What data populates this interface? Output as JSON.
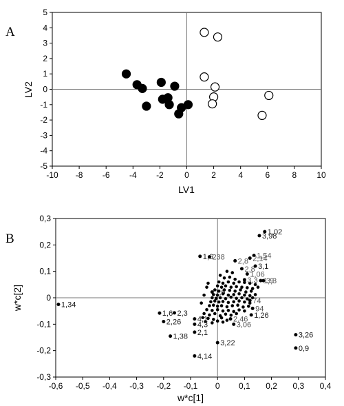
{
  "panels": {
    "A": {
      "letter": "A",
      "xlabel": "LV1",
      "ylabel": "LV2",
      "xticks": [
        "-10",
        "-8",
        "-6",
        "-4",
        "-2",
        "0",
        "2",
        "4",
        "6",
        "8",
        "10"
      ],
      "yticks": [
        "5",
        "4",
        "3",
        "2",
        "1",
        "0",
        "-1",
        "-2",
        "-3",
        "-4",
        "-5"
      ]
    },
    "B": {
      "letter": "B",
      "xlabel": "w*c[1]",
      "ylabel": "w*c[2]",
      "xticks": [
        "-0,6",
        "-0,5",
        "-0,4",
        "-0,3",
        "-0,2",
        "-0,1",
        "0",
        "0,1",
        "0,2",
        "0,3",
        "0,4"
      ],
      "yticks": [
        "0,3",
        "0,2",
        "0,1",
        "0",
        "-0,1",
        "-0,2",
        "-0,3"
      ]
    }
  },
  "chart_data": [
    {
      "type": "scatter",
      "title": "",
      "xlabel": "LV1",
      "ylabel": "LV2",
      "xlim": [
        -10,
        10
      ],
      "ylim": [
        -5,
        5
      ],
      "grid": false,
      "reference_lines": {
        "x": 0,
        "y": 0
      },
      "series": [
        {
          "marker": "filled-circle",
          "color": "#000000",
          "points": [
            {
              "x": -4.5,
              "y": 1.0
            },
            {
              "x": -3.7,
              "y": 0.3
            },
            {
              "x": -3.3,
              "y": 0.05
            },
            {
              "x": -3.0,
              "y": -1.1
            },
            {
              "x": -1.9,
              "y": 0.45
            },
            {
              "x": -1.8,
              "y": -0.65
            },
            {
              "x": -1.4,
              "y": -0.55
            },
            {
              "x": -1.3,
              "y": -1.0
            },
            {
              "x": -0.9,
              "y": 0.2
            },
            {
              "x": -0.6,
              "y": -1.6
            },
            {
              "x": -0.4,
              "y": -1.2
            },
            {
              "x": 0.1,
              "y": -1.0
            }
          ]
        },
        {
          "marker": "open-circle",
          "color": "#000000",
          "points": [
            {
              "x": 1.3,
              "y": 3.7
            },
            {
              "x": 2.3,
              "y": 3.4
            },
            {
              "x": 1.3,
              "y": 0.8
            },
            {
              "x": 2.1,
              "y": 0.15
            },
            {
              "x": 2.0,
              "y": -0.5
            },
            {
              "x": 1.9,
              "y": -0.95
            },
            {
              "x": 6.1,
              "y": -0.4
            },
            {
              "x": 5.6,
              "y": -1.7
            }
          ]
        }
      ]
    },
    {
      "type": "scatter",
      "title": "",
      "xlabel": "w*c[1]",
      "ylabel": "w*c[2]",
      "xlim": [
        -0.6,
        0.4
      ],
      "ylim": [
        -0.3,
        0.3
      ],
      "grid": false,
      "reference_lines": {
        "x": 0,
        "y": 0
      },
      "series": [
        {
          "marker": "small-dot",
          "color": "#000000",
          "labeled_points": [
            {
              "label": "1,02",
              "x": 0.175,
              "y": 0.25
            },
            {
              "label": "3,98",
              "x": 0.155,
              "y": 0.235
            },
            {
              "label": "1,34",
              "x": -0.59,
              "y": -0.025
            },
            {
              "label": "3,26",
              "x": 0.29,
              "y": -0.14
            },
            {
              "label": "0,9",
              "x": 0.29,
              "y": -0.19
            },
            {
              "label": "1,6",
              "x": -0.065,
              "y": 0.157
            },
            {
              "label": "238",
              "x": -0.03,
              "y": 0.155
            },
            {
              "label": "2,8",
              "x": 0.065,
              "y": 0.14
            },
            {
              "label": "1,54",
              "x": 0.135,
              "y": 0.16
            },
            {
              "label": "2,14",
              "x": 0.12,
              "y": 0.15
            },
            {
              "label": "3,1",
              "x": 0.14,
              "y": 0.12
            },
            {
              "label": "2,8",
              "x": 0.09,
              "y": 0.11
            },
            {
              "label": "1,06",
              "x": 0.11,
              "y": 0.09
            },
            {
              "label": "1,9",
              "x": 0.16,
              "y": 0.065
            },
            {
              "label": "3,3",
              "x": 0.17,
              "y": 0.065
            },
            {
              "label": "1,6",
              "x": -0.02,
              "y": 0.022
            },
            {
              "label": "3,06",
              "x": 0.06,
              "y": -0.1
            },
            {
              "label": "1,26",
              "x": 0.125,
              "y": -0.065
            },
            {
              "label": "3,22",
              "x": 0.0,
              "y": -0.17
            },
            {
              "label": "4,14",
              "x": -0.085,
              "y": -0.22
            },
            {
              "label": "1,38",
              "x": -0.175,
              "y": -0.145
            },
            {
              "label": "2,1",
              "x": -0.085,
              "y": -0.13
            },
            {
              "label": "4,3",
              "x": -0.085,
              "y": -0.1
            },
            {
              "label": "4,1",
              "x": -0.085,
              "y": -0.08
            },
            {
              "label": "2,26",
              "x": -0.2,
              "y": -0.09
            },
            {
              "label": "1,6",
              "x": -0.215,
              "y": -0.058
            },
            {
              "label": "2,3",
              "x": -0.16,
              "y": -0.057
            },
            {
              "label": "2,46",
              "x": 0.048,
              "y": -0.08
            },
            {
              "label": "94",
              "x": 0.13,
              "y": -0.04
            },
            {
              "label": "74",
              "x": 0.12,
              "y": -0.01
            },
            {
              "label": "3,3",
              "x": 0.1,
              "y": 0.068
            }
          ],
          "cluster_points": [
            [
              0.005,
              0.06
            ],
            [
              0.02,
              0.055
            ],
            [
              0.04,
              0.06
            ],
            [
              0.06,
              0.055
            ],
            [
              0.08,
              0.06
            ],
            [
              0.1,
              0.058
            ],
            [
              0.12,
              0.055
            ],
            [
              0.14,
              0.05
            ],
            [
              0.0,
              0.045
            ],
            [
              0.015,
              0.04
            ],
            [
              0.03,
              0.045
            ],
            [
              0.05,
              0.04
            ],
            [
              0.07,
              0.042
            ],
            [
              0.09,
              0.04
            ],
            [
              0.11,
              0.038
            ],
            [
              0.13,
              0.035
            ],
            [
              0.15,
              0.04
            ],
            [
              -0.01,
              0.03
            ],
            [
              0.005,
              0.025
            ],
            [
              0.025,
              0.03
            ],
            [
              0.045,
              0.028
            ],
            [
              0.065,
              0.025
            ],
            [
              0.085,
              0.03
            ],
            [
              0.105,
              0.022
            ],
            [
              0.125,
              0.025
            ],
            [
              -0.015,
              0.012
            ],
            [
              0.0,
              0.01
            ],
            [
              0.02,
              0.015
            ],
            [
              0.04,
              0.01
            ],
            [
              0.06,
              0.012
            ],
            [
              0.08,
              0.015
            ],
            [
              0.1,
              0.01
            ],
            [
              0.12,
              0.008
            ],
            [
              0.14,
              0.012
            ],
            [
              -0.02,
              0.0
            ],
            [
              -0.005,
              -0.002
            ],
            [
              0.01,
              0.0
            ],
            [
              0.03,
              -0.003
            ],
            [
              0.05,
              0.002
            ],
            [
              0.07,
              -0.002
            ],
            [
              0.09,
              0.0
            ],
            [
              0.11,
              -0.004
            ],
            [
              0.13,
              0.0
            ],
            [
              -0.025,
              -0.015
            ],
            [
              -0.01,
              -0.012
            ],
            [
              0.005,
              -0.016
            ],
            [
              0.02,
              -0.014
            ],
            [
              0.04,
              -0.018
            ],
            [
              0.06,
              -0.015
            ],
            [
              0.08,
              -0.012
            ],
            [
              0.1,
              -0.016
            ],
            [
              0.12,
              -0.02
            ],
            [
              -0.03,
              -0.03
            ],
            [
              -0.015,
              -0.028
            ],
            [
              0.0,
              -0.032
            ],
            [
              0.015,
              -0.03
            ],
            [
              0.035,
              -0.034
            ],
            [
              0.055,
              -0.03
            ],
            [
              0.075,
              -0.028
            ],
            [
              0.095,
              -0.035
            ],
            [
              0.115,
              -0.032
            ],
            [
              -0.04,
              -0.045
            ],
            [
              -0.02,
              -0.048
            ],
            [
              0.0,
              -0.045
            ],
            [
              0.02,
              -0.05
            ],
            [
              0.04,
              -0.048
            ],
            [
              0.06,
              -0.052
            ],
            [
              0.08,
              -0.046
            ],
            [
              0.1,
              -0.05
            ],
            [
              -0.05,
              -0.06
            ],
            [
              -0.03,
              -0.065
            ],
            [
              -0.01,
              -0.06
            ],
            [
              0.01,
              -0.068
            ],
            [
              0.03,
              -0.062
            ],
            [
              0.05,
              -0.066
            ],
            [
              0.07,
              -0.06
            ],
            [
              -0.055,
              -0.075
            ],
            [
              -0.035,
              -0.078
            ],
            [
              -0.015,
              -0.082
            ],
            [
              0.015,
              -0.076
            ],
            [
              0.035,
              -0.085
            ],
            [
              -0.045,
              -0.09
            ],
            [
              -0.02,
              -0.095
            ],
            [
              0.0,
              -0.088
            ],
            [
              0.02,
              -0.092
            ],
            [
              0.025,
              0.075
            ],
            [
              0.045,
              0.078
            ],
            [
              0.065,
              0.07
            ],
            [
              0.01,
              0.085
            ],
            [
              0.055,
              0.095
            ],
            [
              0.035,
              0.1
            ],
            [
              -0.04,
              0.04
            ],
            [
              -0.035,
              0.055
            ],
            [
              -0.06,
              -0.02
            ],
            [
              -0.05,
              0.01
            ]
          ]
        }
      ]
    }
  ]
}
